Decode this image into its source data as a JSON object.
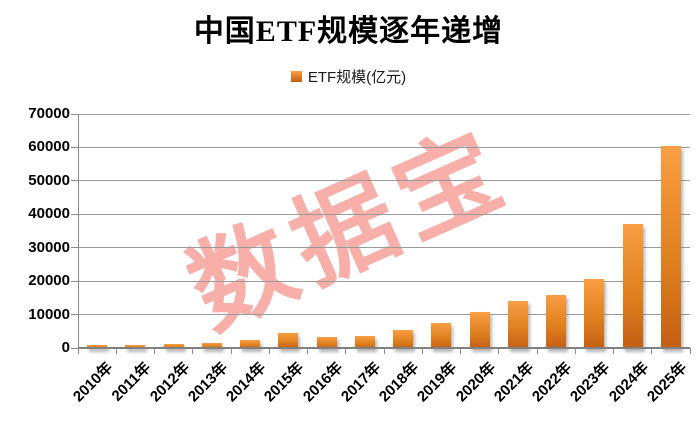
{
  "title": "中国ETF规模逐年递增",
  "legend": {
    "label": "ETF规模(亿元)"
  },
  "watermark": "数据宝",
  "colors": {
    "background": "#ffffff",
    "title_text": "#000000",
    "axis_text": "#000000",
    "gridline": "#9a9a9a",
    "axis_line": "#808080",
    "bar_top": "#F99E44",
    "bar_bottom": "#C25F14",
    "watermark": "#EE4135"
  },
  "chart_data": {
    "type": "bar",
    "title": "中国ETF规模逐年递增",
    "legend": [
      "ETF规模(亿元)"
    ],
    "legend_position": "top",
    "categories": [
      "2010年",
      "2011年",
      "2012年",
      "2013年",
      "2014年",
      "2015年",
      "2016年",
      "2017年",
      "2018年",
      "2019年",
      "2020年",
      "2021年",
      "2022年",
      "2023年",
      "2024年",
      "2025年"
    ],
    "values": [
      770,
      800,
      1300,
      1500,
      2300,
      4500,
      3300,
      3450,
      5500,
      7500,
      10900,
      14000,
      16000,
      20500,
      37000,
      60500
    ],
    "xlabel": "",
    "ylabel": "",
    "ylim": [
      0,
      70000
    ],
    "yticks": [
      0,
      10000,
      20000,
      30000,
      40000,
      50000,
      60000,
      70000
    ],
    "grid": true,
    "watermark": "数据宝",
    "bar_color_top": "#F99E44",
    "bar_color_bottom": "#C25F14"
  }
}
